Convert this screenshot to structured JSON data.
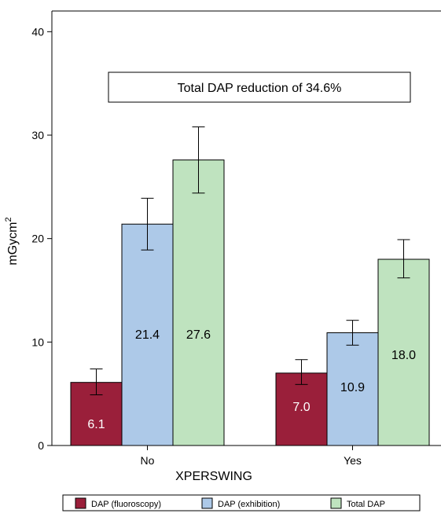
{
  "chart_data": {
    "type": "bar",
    "categories": [
      "No",
      "Yes"
    ],
    "series": [
      {
        "name": "DAP (fluoroscopy)",
        "values": [
          6.1,
          7.0
        ],
        "err_low": [
          4.9,
          5.9
        ],
        "err_high": [
          7.4,
          8.3
        ],
        "labels": [
          "6.1",
          "7.0"
        ],
        "color": "#9a1f3a",
        "label_color": "#ffffff"
      },
      {
        "name": "DAP (exhibition)",
        "values": [
          21.4,
          10.9
        ],
        "err_low": [
          18.9,
          9.7
        ],
        "err_high": [
          23.9,
          12.1
        ],
        "labels": [
          "21.4",
          "10.9"
        ],
        "color": "#adc9e8",
        "label_color": "#000000"
      },
      {
        "name": "Total DAP",
        "values": [
          27.6,
          18.0
        ],
        "err_low": [
          24.4,
          16.2
        ],
        "err_high": [
          30.8,
          19.9
        ],
        "labels": [
          "27.6",
          "18.0"
        ],
        "color": "#bfe3bf",
        "label_color": "#000000"
      }
    ],
    "xlabel": "XPERSWING",
    "ylabel": "mGycm",
    "ylabel_sup": "2",
    "ylim": [
      0,
      42
    ],
    "yticks": [
      0,
      10,
      20,
      30,
      40
    ],
    "annotation": "Total DAP reduction of 34.6%",
    "grid": false,
    "legend_position": "bottom"
  }
}
